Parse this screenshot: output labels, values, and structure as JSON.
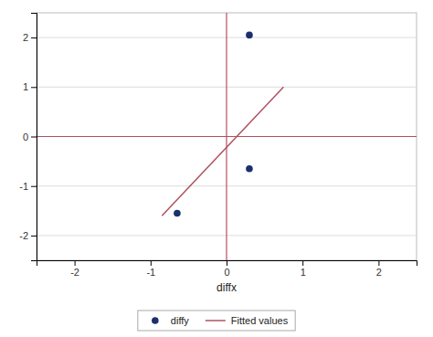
{
  "chart_data": {
    "type": "scatter",
    "x_label": "diffx",
    "series": [
      {
        "name": "diffy",
        "type": "scatter",
        "marker": "circle",
        "color": "#1a2f6e",
        "x": [
          0.3,
          0.3,
          -0.65
        ],
        "values": [
          2.05,
          -0.65,
          -1.55
        ]
      },
      {
        "name": "Fitted values",
        "type": "line",
        "line_style": "solid",
        "color": "#b05060",
        "x": [
          -0.85,
          0.75
        ],
        "values": [
          -1.6,
          1.0
        ]
      }
    ],
    "reference_lines": [
      {
        "axis": "y",
        "value": 0,
        "color": "#b05060"
      },
      {
        "axis": "x",
        "value": 0,
        "color": "#b05060"
      }
    ],
    "xlim": [
      -2.5,
      2.5
    ],
    "ylim": [
      -2.5,
      2.5
    ],
    "xticks": [
      -2,
      -1,
      0,
      1,
      2
    ],
    "yticks": [
      -2,
      -1,
      0,
      1,
      2
    ],
    "grid": "y",
    "legend": "bottom"
  }
}
